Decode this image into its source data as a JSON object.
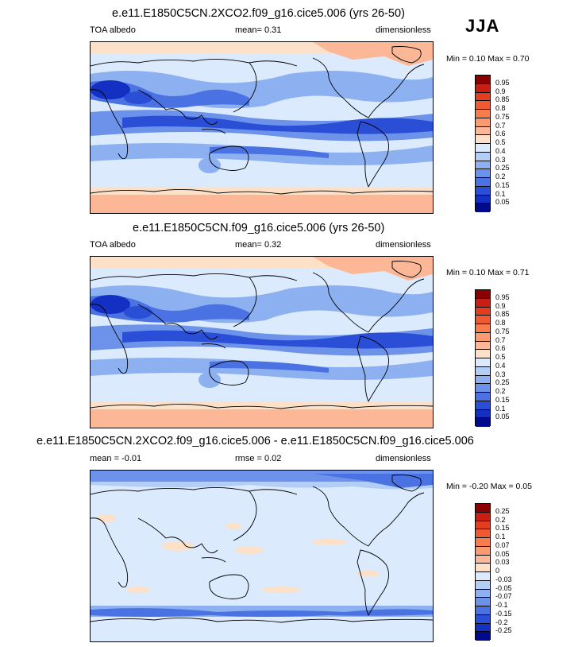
{
  "season": "JJA",
  "panels": [
    {
      "title": "e.e11.E1850C5CN.2XCO2.f09_g16.cice5.006 (yrs 26-50)",
      "left": "TOA albedo",
      "center": "mean=   0.31",
      "right": "dimensionless",
      "minmax": "Min =   0.10 Max =   0.70",
      "legend_labels": [
        "0.95",
        "0.9",
        "0.85",
        "0.8",
        "0.75",
        "0.7",
        "0.6",
        "0.5",
        "0.4",
        "0.3",
        "0.25",
        "0.2",
        "0.15",
        "0.1",
        "0.05"
      ],
      "legend_colors": [
        "#8b0000",
        "#c81e14",
        "#e43c1e",
        "#f05a32",
        "#f87c4c",
        "#fa9a70",
        "#fcb896",
        "#fde0c8",
        "#dbeafc",
        "#b2cdf6",
        "#8cb0f0",
        "#6c92ea",
        "#4b72e2",
        "#2a4fd6",
        "#1330c2",
        "#000a8a"
      ],
      "field": "albedo"
    },
    {
      "title": "e.e11.E1850C5CN.f09_g16.cice5.006 (yrs 26-50)",
      "left": "TOA albedo",
      "center": "mean=   0.32",
      "right": "dimensionless",
      "minmax": "Min =   0.10 Max =   0.71",
      "legend_labels": [
        "0.95",
        "0.9",
        "0.85",
        "0.8",
        "0.75",
        "0.7",
        "0.6",
        "0.5",
        "0.4",
        "0.3",
        "0.25",
        "0.2",
        "0.15",
        "0.1",
        "0.05"
      ],
      "legend_colors": [
        "#8b0000",
        "#c81e14",
        "#e43c1e",
        "#f05a32",
        "#f87c4c",
        "#fa9a70",
        "#fcb896",
        "#fde0c8",
        "#dbeafc",
        "#b2cdf6",
        "#8cb0f0",
        "#6c92ea",
        "#4b72e2",
        "#2a4fd6",
        "#1330c2",
        "#000a8a"
      ],
      "field": "albedo"
    },
    {
      "title": "e.e11.E1850C5CN.2XCO2.f09_g16.cice5.006 - e.e11.E1850C5CN.f09_g16.cice5.006",
      "left": "mean =  -0.01",
      "center": "rmse =   0.02",
      "right": "dimensionless",
      "minmax": "Min =  -0.20 Max =   0.05",
      "legend_labels": [
        "0.25",
        "0.2",
        "0.15",
        "0.1",
        "0.07",
        "0.05",
        "0.03",
        "0",
        "-0.03",
        "-0.05",
        "-0.07",
        "-0.1",
        "-0.15",
        "-0.2",
        "-0.25"
      ],
      "legend_colors": [
        "#8b0000",
        "#c81e14",
        "#e43c1e",
        "#f05a32",
        "#f87c4c",
        "#fa9a70",
        "#fcb896",
        "#fde0c8",
        "#dbeafc",
        "#b2cdf6",
        "#8cb0f0",
        "#6c92ea",
        "#4b72e2",
        "#2a4fd6",
        "#1330c2",
        "#000a8a"
      ],
      "field": "difference"
    }
  ]
}
